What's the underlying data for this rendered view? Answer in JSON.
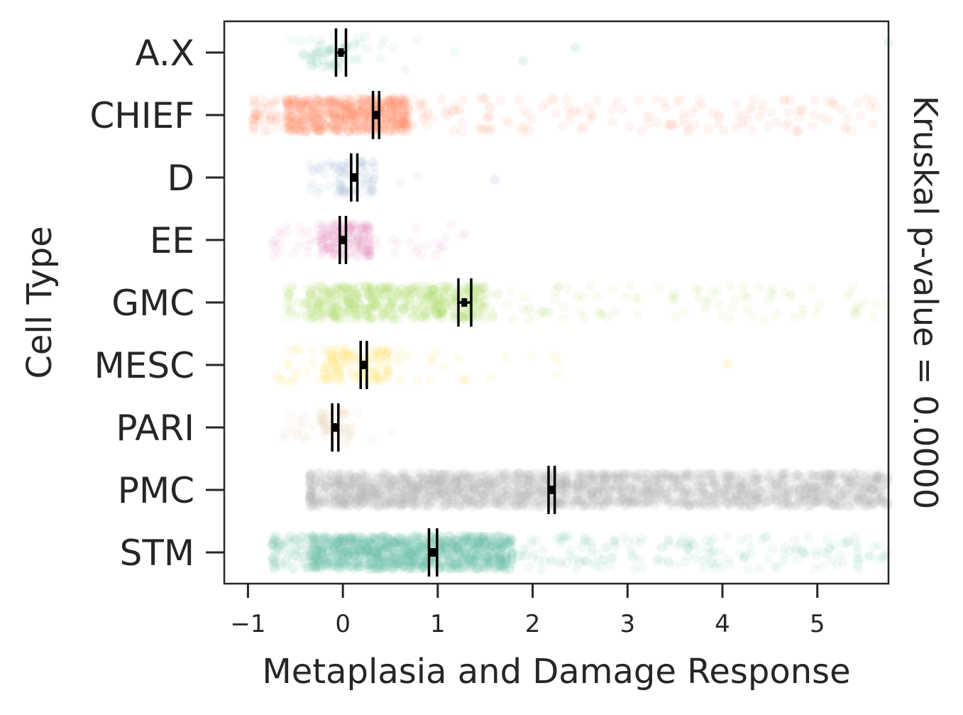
{
  "chart_data": {
    "type": "strip",
    "orientation": "horizontal",
    "xlabel": "Metaplasia and Damage Response",
    "ylabel": "Cell Type",
    "side_annotation": "Kruskal p-value = 0.0000",
    "xlim": [
      -1.25,
      5.75
    ],
    "xticks": [
      -1,
      0,
      1,
      2,
      3,
      4,
      5
    ],
    "xtick_labels": [
      "−1",
      "0",
      "1",
      "2",
      "3",
      "4",
      "5"
    ],
    "categories": [
      "A.X",
      "CHIEF",
      "D",
      "EE",
      "GMC",
      "MESC",
      "PARI",
      "PMC",
      "STM"
    ],
    "series": [
      {
        "name": "A.X",
        "color": "#66c2a5",
        "mean": -0.02,
        "ci": [
          -0.05,
          0.01
        ],
        "core_range": [
          -0.4,
          0.2
        ],
        "spread": [
          -0.55,
          1.2
        ],
        "outliers": [
          1.9,
          2.45,
          5.75
        ],
        "density": 70
      },
      {
        "name": "CHIEF",
        "color": "#fc8d62",
        "mean": 0.35,
        "ci": [
          0.34,
          0.36
        ],
        "core_range": [
          -0.6,
          0.7
        ],
        "spread": [
          -0.95,
          5.75
        ],
        "outliers": [],
        "density": 900
      },
      {
        "name": "D",
        "color": "#8da0cb",
        "mean": 0.12,
        "ci": [
          0.11,
          0.13
        ],
        "core_range": [
          -0.1,
          0.35
        ],
        "spread": [
          -0.35,
          0.9
        ],
        "outliers": [
          1.6
        ],
        "density": 80
      },
      {
        "name": "EE",
        "color": "#e78ac3",
        "mean": 0.0,
        "ci": [
          -0.01,
          0.01
        ],
        "core_range": [
          -0.25,
          0.3
        ],
        "spread": [
          -0.75,
          1.4
        ],
        "outliers": [],
        "density": 220
      },
      {
        "name": "GMC",
        "color": "#a6d854",
        "mean": 1.28,
        "ci": [
          1.24,
          1.33
        ],
        "core_range": [
          -0.35,
          1.5
        ],
        "spread": [
          -0.6,
          5.75
        ],
        "outliers": [],
        "density": 700
      },
      {
        "name": "MESC",
        "color": "#ffd92f",
        "mean": 0.22,
        "ci": [
          0.21,
          0.23
        ],
        "core_range": [
          -0.2,
          0.5
        ],
        "spread": [
          -0.7,
          2.3
        ],
        "outliers": [
          4.05
        ],
        "density": 160
      },
      {
        "name": "PARI",
        "color": "#e5c494",
        "mean": -0.08,
        "ci": [
          -0.09,
          -0.07
        ],
        "core_range": [
          -0.25,
          0.1
        ],
        "spread": [
          -0.65,
          0.55
        ],
        "outliers": [],
        "density": 60
      },
      {
        "name": "PMC",
        "color": "#b3b3b3",
        "mean": 2.2,
        "ci": [
          2.19,
          2.21
        ],
        "core_range": [
          -0.1,
          5.75
        ],
        "spread": [
          -0.35,
          5.75
        ],
        "outliers": [],
        "density": 2600
      },
      {
        "name": "STM",
        "color": "#66c2a5",
        "mean": 0.95,
        "ci": [
          0.93,
          0.97
        ],
        "core_range": [
          -0.35,
          1.8
        ],
        "spread": [
          -0.75,
          5.75
        ],
        "outliers": [],
        "density": 1500
      }
    ]
  }
}
